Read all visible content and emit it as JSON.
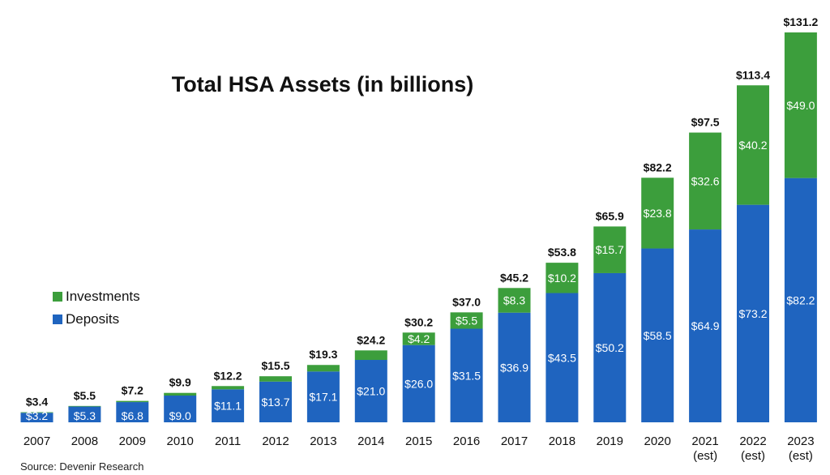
{
  "chart_data": {
    "type": "bar",
    "stacked": true,
    "title": "Total HSA Assets (in billions)",
    "categories": [
      "2007",
      "2008",
      "2009",
      "2010",
      "2011",
      "2012",
      "2013",
      "2014",
      "2015",
      "2016",
      "2017",
      "2018",
      "2019",
      "2020",
      "2021",
      "2022",
      "2023"
    ],
    "category_sublabels": [
      "",
      "",
      "",
      "",
      "",
      "",
      "",
      "",
      "",
      "",
      "",
      "",
      "",
      "",
      "(est)",
      "(est)",
      "(est)"
    ],
    "series": [
      {
        "name": "Deposits",
        "color": "#1f64bf",
        "values": [
          3.2,
          5.3,
          6.8,
          9.0,
          11.1,
          13.7,
          17.1,
          21.0,
          26.0,
          31.5,
          36.9,
          43.5,
          50.2,
          58.5,
          64.9,
          73.2,
          82.2
        ],
        "labels": [
          "$3.2",
          "$5.3",
          "$6.8",
          "$9.0",
          "$11.1",
          "$13.7",
          "$17.1",
          "$21.0",
          "$26.0",
          "$31.5",
          "$36.9",
          "$43.5",
          "$50.2",
          "$58.5",
          "$64.9",
          "$73.2",
          "$82.2"
        ]
      },
      {
        "name": "Investments",
        "color": "#3c9e3c",
        "values": [
          0.2,
          0.2,
          0.4,
          0.9,
          1.1,
          1.8,
          2.2,
          3.2,
          4.2,
          5.5,
          8.3,
          10.2,
          15.7,
          23.8,
          32.6,
          40.2,
          49.0
        ],
        "labels": [
          "",
          "",
          "",
          "",
          "",
          "",
          "",
          "",
          "$4.2",
          "$5.5",
          "$8.3",
          "$10.2",
          "$15.7",
          "$23.8",
          "$32.6",
          "$40.2",
          "$49.0"
        ]
      }
    ],
    "totals": [
      3.4,
      5.5,
      7.2,
      9.9,
      12.2,
      15.5,
      19.3,
      24.2,
      30.2,
      37.0,
      45.2,
      53.8,
      65.9,
      82.2,
      97.5,
      113.4,
      131.2
    ],
    "total_labels": [
      "$3.4",
      "$5.5",
      "$7.2",
      "$9.9",
      "$12.2",
      "$15.5",
      "$19.3",
      "$24.2",
      "$30.2",
      "$37.0",
      "$45.2",
      "$53.8",
      "$65.9",
      "$82.2",
      "$97.5",
      "$113.4",
      "$131.2"
    ],
    "ylim": [
      0,
      131.2
    ],
    "grid": false,
    "legend_position": "left",
    "source": "Source: Devenir Research"
  }
}
